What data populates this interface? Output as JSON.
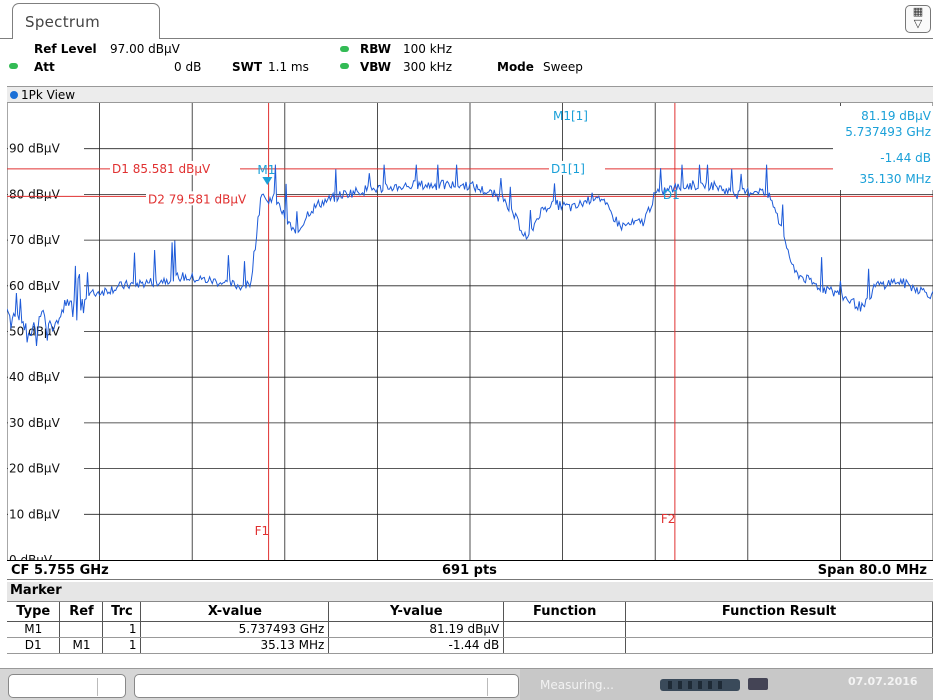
{
  "tab": {
    "label": "Spectrum"
  },
  "settings": {
    "ref_level_label": "Ref Level",
    "ref_level_value": "97.00 dBµV",
    "att_label": "Att",
    "att_value": "0 dB",
    "swt_label": "SWT",
    "swt_value": "1.1 ms",
    "rbw_label": "RBW",
    "rbw_value": "100 kHz",
    "vbw_label": "VBW",
    "vbw_value": "300 kHz",
    "mode_label": "Mode",
    "mode_value": "Sweep"
  },
  "view": {
    "label": "1Pk View"
  },
  "plot": {
    "y_labels": [
      "90 dBµV",
      "80 dBµV",
      "70 dBµV",
      "60 dBµV",
      "50 dBµV",
      "40 dBµV",
      "30 dBµV",
      "20 dBµV",
      "10 dBµV",
      "0 dBµV"
    ],
    "d1_label": "D1  85.581 dBµV",
    "d2_label": "D2  79.581 dBµV",
    "m1_tag": "M1",
    "d1_tag": "D1[1]",
    "d1_marker_tag": "D1",
    "f1_label": "F1",
    "f2_label": "F2",
    "m1_readout_label": "M1[1]",
    "m1_readout_level": "81.19 dBµV",
    "m1_readout_freq": "5.737493 GHz",
    "d1_readout_level": "-1.44 dB",
    "d1_readout_freq": "35.130 MHz"
  },
  "footer": {
    "cf": "CF 5.755 GHz",
    "pts": "691 pts",
    "span": "Span 80.0 MHz"
  },
  "marker_table": {
    "title": "Marker",
    "headers": [
      "Type",
      "Ref",
      "Trc",
      "X-value",
      "Y-value",
      "Function",
      "Function Result"
    ],
    "rows": [
      [
        "M1",
        "",
        "1",
        "5.737493 GHz",
        "81.19 dBµV",
        "",
        ""
      ],
      [
        "D1",
        "M1",
        "1",
        "35.13 MHz",
        "-1.44 dB",
        "",
        ""
      ]
    ]
  },
  "status": {
    "measuring": "Measuring...",
    "date": "07.07.2016"
  },
  "colors": {
    "trace": "#1e5bd8",
    "limit": "#e03030",
    "marker": "#1aa0d8",
    "status_ok": "#33bb55"
  },
  "chart_data": {
    "type": "line",
    "title": "",
    "xlabel": "",
    "ylabel": "",
    "x_range_ghz": [
      5.715,
      5.795
    ],
    "ylim": [
      0,
      100
    ],
    "series": [
      {
        "x": [
          5.715,
          5.717,
          5.718,
          5.719,
          5.72,
          5.722,
          5.725,
          5.728,
          5.73,
          5.733,
          5.735,
          5.736,
          5.7365,
          5.737,
          5.7375,
          5.738,
          5.739,
          5.74,
          5.741,
          5.742,
          5.744,
          5.746,
          5.75,
          5.755,
          5.758,
          5.76,
          5.761,
          5.762,
          5.764,
          5.766,
          5.768,
          5.77,
          5.771,
          5.772,
          5.774,
          5.776,
          5.778,
          5.78,
          5.781,
          5.782,
          5.783,
          5.785,
          5.787,
          5.789,
          5.79,
          5.792,
          5.793,
          5.795
        ],
        "values": [
          55,
          50,
          54,
          51,
          56,
          58,
          60,
          61,
          62,
          61,
          60,
          60,
          70,
          81,
          78,
          80,
          75,
          71,
          76,
          78,
          80,
          81,
          82,
          82,
          79,
          70,
          76,
          78,
          77,
          80,
          73,
          74,
          80,
          81,
          82,
          82,
          80,
          81,
          79,
          72,
          63,
          60,
          58,
          55,
          60,
          61,
          60,
          58
        ]
      }
    ]
  }
}
